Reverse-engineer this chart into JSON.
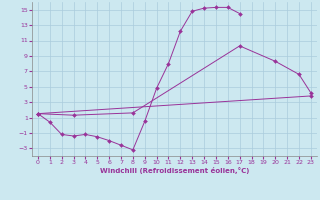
{
  "xlabel": "Windchill (Refroidissement éolien,°C)",
  "bg_color": "#cce8f0",
  "line_color": "#993399",
  "grid_color": "#aaccdd",
  "xlim": [
    -0.5,
    23.5
  ],
  "ylim": [
    -4,
    16
  ],
  "xticks": [
    0,
    1,
    2,
    3,
    4,
    5,
    6,
    7,
    8,
    9,
    10,
    11,
    12,
    13,
    14,
    15,
    16,
    17,
    18,
    19,
    20,
    21,
    22,
    23
  ],
  "yticks": [
    -3,
    -1,
    1,
    3,
    5,
    7,
    9,
    11,
    13,
    15
  ],
  "line1_x": [
    0,
    1,
    2,
    3,
    4,
    5,
    6,
    7,
    8,
    9,
    10,
    11,
    12,
    13,
    14,
    15,
    16,
    17
  ],
  "line1_y": [
    1.5,
    0.4,
    -1.2,
    -1.4,
    -1.2,
    -1.5,
    -2.0,
    -2.6,
    -3.2,
    0.5,
    4.8,
    8.0,
    12.2,
    14.8,
    15.2,
    15.3,
    15.3,
    14.5
  ],
  "line2_x": [
    0,
    3,
    8,
    17,
    20,
    22,
    23
  ],
  "line2_y": [
    1.5,
    1.3,
    1.6,
    10.3,
    8.3,
    6.6,
    4.2
  ],
  "line3_x": [
    0,
    23
  ],
  "line3_y": [
    1.5,
    3.8
  ]
}
